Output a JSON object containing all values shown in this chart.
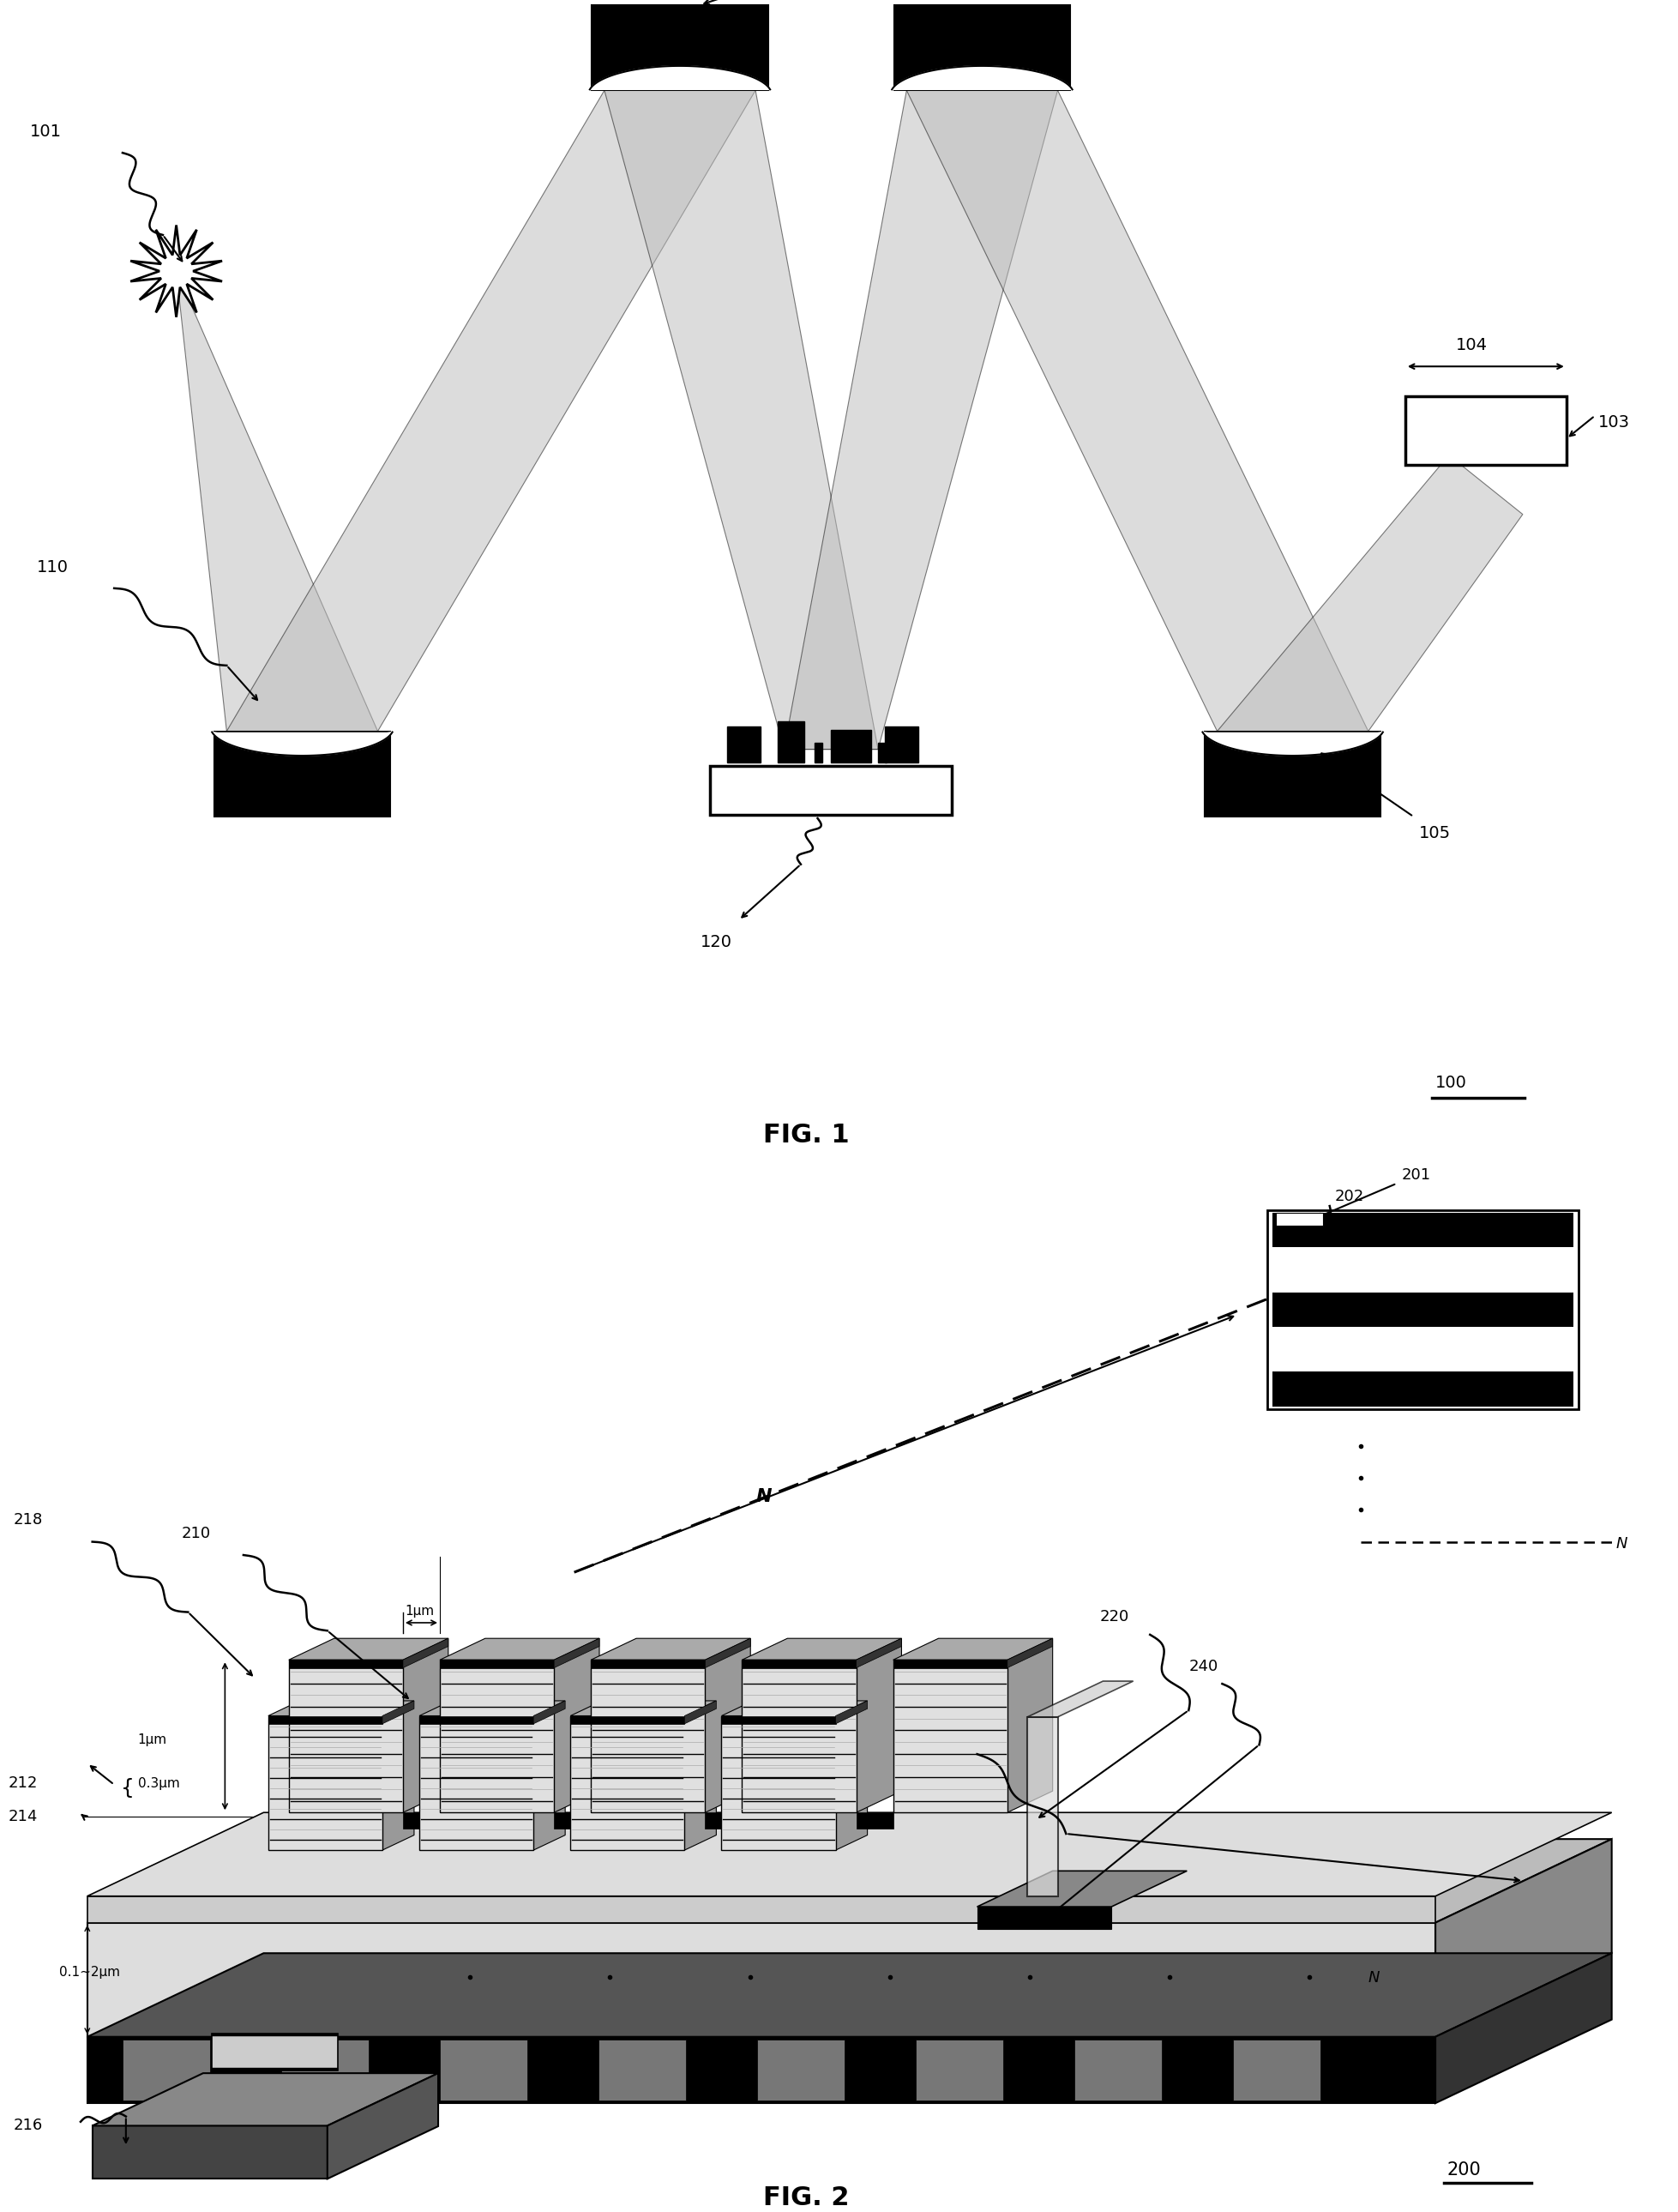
{
  "fig_width": 19.58,
  "fig_height": 25.79,
  "bg_color": "#ffffff",
  "fig1_label": "FIG. 1",
  "fig2_label": "FIG. 2",
  "label_100": "100",
  "label_200": "200",
  "beam_gray": "#bbbbbb",
  "beam_alpha": 0.55,
  "mirror_black": "#000000",
  "mirror_white": "#ffffff",
  "stack_front": "#d8d8d8",
  "stack_top": "#c0c0c0",
  "stack_side": "#888888",
  "stack_dark": "#222222",
  "substrate_top": "#aaaaaa",
  "substrate_side": "#555555",
  "substrate_front": "#000000",
  "electrode_dark": "#333333",
  "ref_black": "#000000"
}
